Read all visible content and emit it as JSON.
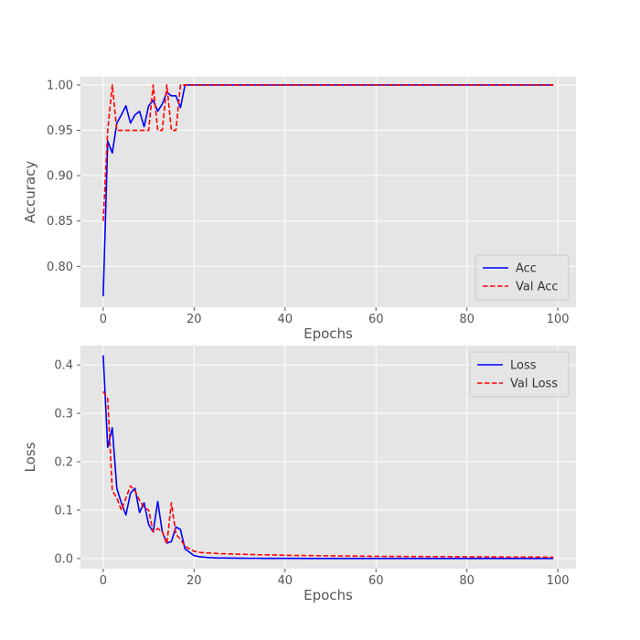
{
  "chart_data": [
    {
      "type": "line",
      "xlabel": "Epochs",
      "ylabel": "Accuracy",
      "xlim": [
        -5,
        104
      ],
      "ylim": [
        0.755,
        1.009
      ],
      "xticks": [
        0,
        20,
        40,
        60,
        80,
        100
      ],
      "yticks": [
        0.8,
        0.85,
        0.9,
        0.95,
        1.0
      ],
      "ytick_labels": [
        "0.80",
        "0.85",
        "0.90",
        "0.95",
        "1.00"
      ],
      "grid": true,
      "legend_position": "lower-right",
      "x": [
        0,
        1,
        2,
        3,
        4,
        5,
        6,
        7,
        8,
        9,
        10,
        11,
        12,
        13,
        14,
        15,
        16,
        17,
        18,
        19,
        20,
        21,
        22,
        23,
        24,
        25,
        26,
        27,
        28,
        29,
        30,
        31,
        32,
        33,
        34,
        35,
        36,
        37,
        38,
        39,
        40,
        41,
        42,
        43,
        44,
        45,
        46,
        47,
        48,
        49,
        50,
        51,
        52,
        53,
        54,
        55,
        56,
        57,
        58,
        59,
        60,
        61,
        62,
        63,
        64,
        65,
        66,
        67,
        68,
        69,
        70,
        71,
        72,
        73,
        74,
        75,
        76,
        77,
        78,
        79,
        80,
        81,
        82,
        83,
        84,
        85,
        86,
        87,
        88,
        89,
        90,
        91,
        92,
        93,
        94,
        95,
        96,
        97,
        98,
        99
      ],
      "series": [
        {
          "name": "Acc",
          "color": "#0000ff",
          "dash": "solid",
          "values": [
            0.767,
            0.938,
            0.925,
            0.958,
            0.967,
            0.977,
            0.958,
            0.967,
            0.971,
            0.954,
            0.977,
            0.983,
            0.971,
            0.979,
            0.992,
            0.988,
            0.988,
            0.975,
            1.0,
            1.0,
            1.0,
            1.0,
            1.0,
            1.0,
            1.0,
            1.0,
            1.0,
            1.0,
            1.0,
            1.0,
            1.0,
            1.0,
            1.0,
            1.0,
            1.0,
            1.0,
            1.0,
            1.0,
            1.0,
            1.0,
            1.0,
            1.0,
            1.0,
            1.0,
            1.0,
            1.0,
            1.0,
            1.0,
            1.0,
            1.0,
            1.0,
            1.0,
            1.0,
            1.0,
            1.0,
            1.0,
            1.0,
            1.0,
            1.0,
            1.0,
            1.0,
            1.0,
            1.0,
            1.0,
            1.0,
            1.0,
            1.0,
            1.0,
            1.0,
            1.0,
            1.0,
            1.0,
            1.0,
            1.0,
            1.0,
            1.0,
            1.0,
            1.0,
            1.0,
            1.0,
            1.0,
            1.0,
            1.0,
            1.0,
            1.0,
            1.0,
            1.0,
            1.0,
            1.0,
            1.0,
            1.0,
            1.0,
            1.0,
            1.0,
            1.0,
            1.0,
            1.0,
            1.0,
            1.0,
            1.0
          ]
        },
        {
          "name": "Val Acc",
          "color": "#ff0000",
          "dash": "dashed",
          "values": [
            0.85,
            0.95,
            1.0,
            0.95,
            0.95,
            0.95,
            0.95,
            0.95,
            0.95,
            0.95,
            0.95,
            1.0,
            0.95,
            0.95,
            1.0,
            0.95,
            0.95,
            1.0,
            1.0,
            1.0,
            1.0,
            1.0,
            1.0,
            1.0,
            1.0,
            1.0,
            1.0,
            1.0,
            1.0,
            1.0,
            1.0,
            1.0,
            1.0,
            1.0,
            1.0,
            1.0,
            1.0,
            1.0,
            1.0,
            1.0,
            1.0,
            1.0,
            1.0,
            1.0,
            1.0,
            1.0,
            1.0,
            1.0,
            1.0,
            1.0,
            1.0,
            1.0,
            1.0,
            1.0,
            1.0,
            1.0,
            1.0,
            1.0,
            1.0,
            1.0,
            1.0,
            1.0,
            1.0,
            1.0,
            1.0,
            1.0,
            1.0,
            1.0,
            1.0,
            1.0,
            1.0,
            1.0,
            1.0,
            1.0,
            1.0,
            1.0,
            1.0,
            1.0,
            1.0,
            1.0,
            1.0,
            1.0,
            1.0,
            1.0,
            1.0,
            1.0,
            1.0,
            1.0,
            1.0,
            1.0,
            1.0,
            1.0,
            1.0,
            1.0,
            1.0,
            1.0,
            1.0,
            1.0,
            1.0,
            1.0
          ]
        }
      ]
    },
    {
      "type": "line",
      "xlabel": "Epochs",
      "ylabel": "Loss",
      "xlim": [
        -5,
        104
      ],
      "ylim": [
        -0.021,
        0.44
      ],
      "xticks": [
        0,
        20,
        40,
        60,
        80,
        100
      ],
      "yticks": [
        0.0,
        0.1,
        0.2,
        0.3,
        0.4
      ],
      "ytick_labels": [
        "0.0",
        "0.1",
        "0.2",
        "0.3",
        "0.4"
      ],
      "grid": true,
      "legend_position": "upper-right",
      "x": [
        0,
        1,
        2,
        3,
        4,
        5,
        6,
        7,
        8,
        9,
        10,
        11,
        12,
        13,
        14,
        15,
        16,
        17,
        18,
        19,
        20,
        21,
        22,
        23,
        24,
        25,
        26,
        27,
        28,
        29,
        30,
        31,
        32,
        33,
        34,
        35,
        36,
        37,
        38,
        39,
        40,
        41,
        42,
        43,
        44,
        45,
        46,
        47,
        48,
        49,
        50,
        51,
        52,
        53,
        54,
        55,
        56,
        57,
        58,
        59,
        60,
        61,
        62,
        63,
        64,
        65,
        66,
        67,
        68,
        69,
        70,
        71,
        72,
        73,
        74,
        75,
        76,
        77,
        78,
        79,
        80,
        81,
        82,
        83,
        84,
        85,
        86,
        87,
        88,
        89,
        90,
        91,
        92,
        93,
        94,
        95,
        96,
        97,
        98,
        99
      ],
      "series": [
        {
          "name": "Loss",
          "color": "#0000ff",
          "dash": "solid",
          "values": [
            0.42,
            0.23,
            0.27,
            0.145,
            0.115,
            0.09,
            0.135,
            0.145,
            0.095,
            0.115,
            0.07,
            0.055,
            0.118,
            0.055,
            0.032,
            0.035,
            0.065,
            0.06,
            0.02,
            0.013,
            0.006,
            0.004,
            0.003,
            0.002,
            0.0015,
            0.001,
            0.001,
            0.001,
            0.0008,
            0.0008,
            0.0006,
            0.0006,
            0.0005,
            0.0005,
            0.0005,
            0.0004,
            0.0004,
            0.0004,
            0.0003,
            0.0003,
            0.0003,
            0.0003,
            0.0003,
            0.0003,
            0.0002,
            0.0002,
            0.0002,
            0.0002,
            0.0002,
            0.0002,
            0.0002,
            0.0002,
            0.0002,
            0.0002,
            0.0002,
            0.0002,
            0.0001,
            0.0001,
            0.0001,
            0.0001,
            0.0001,
            0.0001,
            0.0001,
            0.0001,
            0.0001,
            0.0001,
            0.0001,
            0.0001,
            0.0001,
            0.0001,
            0.0001,
            0.0001,
            0.0001,
            0.0001,
            0.0001,
            0.0001,
            0.0001,
            0.0001,
            0.0001,
            0.0001,
            0.0001,
            0.0001,
            0.0001,
            0.0001,
            0.0001,
            0.0001,
            0.0001,
            0.0001,
            0.0001,
            0.0001,
            0.0001,
            0.0001,
            0.0001,
            0.0001,
            0.0001,
            0.0001,
            0.0001,
            0.0001,
            0.0001,
            0.0001
          ]
        },
        {
          "name": "Val Loss",
          "color": "#ff0000",
          "dash": "dashed",
          "values": [
            0.345,
            0.33,
            0.14,
            0.125,
            0.1,
            0.125,
            0.15,
            0.14,
            0.12,
            0.105,
            0.1,
            0.055,
            0.062,
            0.055,
            0.03,
            0.115,
            0.05,
            0.04,
            0.025,
            0.02,
            0.015,
            0.013,
            0.012,
            0.0115,
            0.011,
            0.0105,
            0.01,
            0.0098,
            0.0095,
            0.0092,
            0.009,
            0.0087,
            0.0085,
            0.0082,
            0.008,
            0.0078,
            0.0076,
            0.0074,
            0.0072,
            0.007,
            0.0068,
            0.0066,
            0.0064,
            0.0063,
            0.0062,
            0.0061,
            0.006,
            0.0059,
            0.0058,
            0.0057,
            0.0056,
            0.0055,
            0.0054,
            0.0053,
            0.0052,
            0.0051,
            0.005,
            0.0049,
            0.0048,
            0.0047,
            0.0046,
            0.0045,
            0.0045,
            0.0044,
            0.0044,
            0.0043,
            0.0043,
            0.0042,
            0.0042,
            0.0041,
            0.0041,
            0.004,
            0.004,
            0.0039,
            0.0039,
            0.0038,
            0.0038,
            0.0037,
            0.0037,
            0.0036,
            0.0036,
            0.0035,
            0.0035,
            0.0034,
            0.0034,
            0.0033,
            0.0033,
            0.0032,
            0.0032,
            0.0031,
            0.0031,
            0.003,
            0.003,
            0.003,
            0.0029,
            0.0029,
            0.0029,
            0.0028,
            0.0028,
            0.0028
          ]
        }
      ]
    }
  ]
}
